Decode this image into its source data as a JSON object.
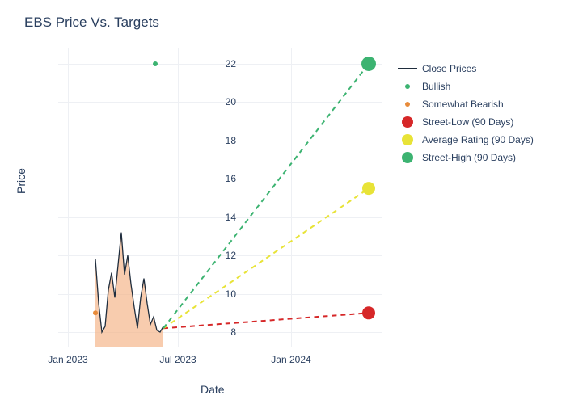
{
  "chart": {
    "title": "EBS Price Vs. Targets",
    "xlabel": "Date",
    "ylabel": "Price",
    "background_color": "#ffffff",
    "grid_color": "#eef0f4",
    "text_color": "#2a3f5f",
    "title_fontsize": 17,
    "label_fontsize": 14,
    "tick_fontsize": 12,
    "ylim": [
      7.2,
      22.8
    ],
    "yticks": [
      8,
      10,
      12,
      14,
      16,
      18,
      20,
      22
    ],
    "xticks": [
      {
        "label": "Jan 2023",
        "pos": 0.03
      },
      {
        "label": "Jul 2023",
        "pos": 0.37
      },
      {
        "label": "Jan 2024",
        "pos": 0.72
      }
    ],
    "series": {
      "close_prices": {
        "label": "Close Prices",
        "color": "#1f2d3d",
        "fill_color": "#f4b183",
        "fill_opacity": 0.65,
        "line_width": 1.3,
        "points": [
          {
            "x": 0.115,
            "y": 11.8
          },
          {
            "x": 0.125,
            "y": 9.5
          },
          {
            "x": 0.135,
            "y": 8.0
          },
          {
            "x": 0.145,
            "y": 8.3
          },
          {
            "x": 0.155,
            "y": 10.2
          },
          {
            "x": 0.165,
            "y": 11.1
          },
          {
            "x": 0.175,
            "y": 9.8
          },
          {
            "x": 0.185,
            "y": 11.5
          },
          {
            "x": 0.195,
            "y": 13.2
          },
          {
            "x": 0.205,
            "y": 11.0
          },
          {
            "x": 0.215,
            "y": 12.0
          },
          {
            "x": 0.225,
            "y": 10.5
          },
          {
            "x": 0.235,
            "y": 9.3
          },
          {
            "x": 0.245,
            "y": 8.2
          },
          {
            "x": 0.255,
            "y": 9.8
          },
          {
            "x": 0.265,
            "y": 10.8
          },
          {
            "x": 0.275,
            "y": 9.5
          },
          {
            "x": 0.285,
            "y": 8.4
          },
          {
            "x": 0.295,
            "y": 8.8
          },
          {
            "x": 0.305,
            "y": 8.1
          },
          {
            "x": 0.315,
            "y": 8.0
          },
          {
            "x": 0.325,
            "y": 8.3
          }
        ]
      },
      "bullish": {
        "label": "Bullish",
        "color": "#3cb371",
        "marker_size": 6,
        "points": [
          {
            "x": 0.3,
            "y": 22.0
          }
        ]
      },
      "somewhat_bearish": {
        "label": "Somewhat Bearish",
        "color": "#e88b3a",
        "marker_size": 6,
        "points": [
          {
            "x": 0.115,
            "y": 9.0
          }
        ]
      },
      "street_low": {
        "label": "Street-Low (90 Days)",
        "color": "#d62728",
        "marker_size": 16,
        "dash": "6,5",
        "line_width": 2,
        "start": {
          "x": 0.325,
          "y": 8.2
        },
        "end": {
          "x": 0.96,
          "y": 9.0
        }
      },
      "average_rating": {
        "label": "Average Rating (90 Days)",
        "color": "#e8e337",
        "marker_size": 16,
        "dash": "6,5",
        "line_width": 2,
        "start": {
          "x": 0.325,
          "y": 8.2
        },
        "end": {
          "x": 0.96,
          "y": 15.5
        }
      },
      "street_high": {
        "label": "Street-High (90 Days)",
        "color": "#3cb371",
        "marker_size": 18,
        "dash": "6,5",
        "line_width": 2,
        "start": {
          "x": 0.325,
          "y": 8.2
        },
        "end": {
          "x": 0.96,
          "y": 22.0
        }
      }
    },
    "legend_order": [
      "close_prices",
      "bullish",
      "somewhat_bearish",
      "street_low",
      "average_rating",
      "street_high"
    ]
  }
}
